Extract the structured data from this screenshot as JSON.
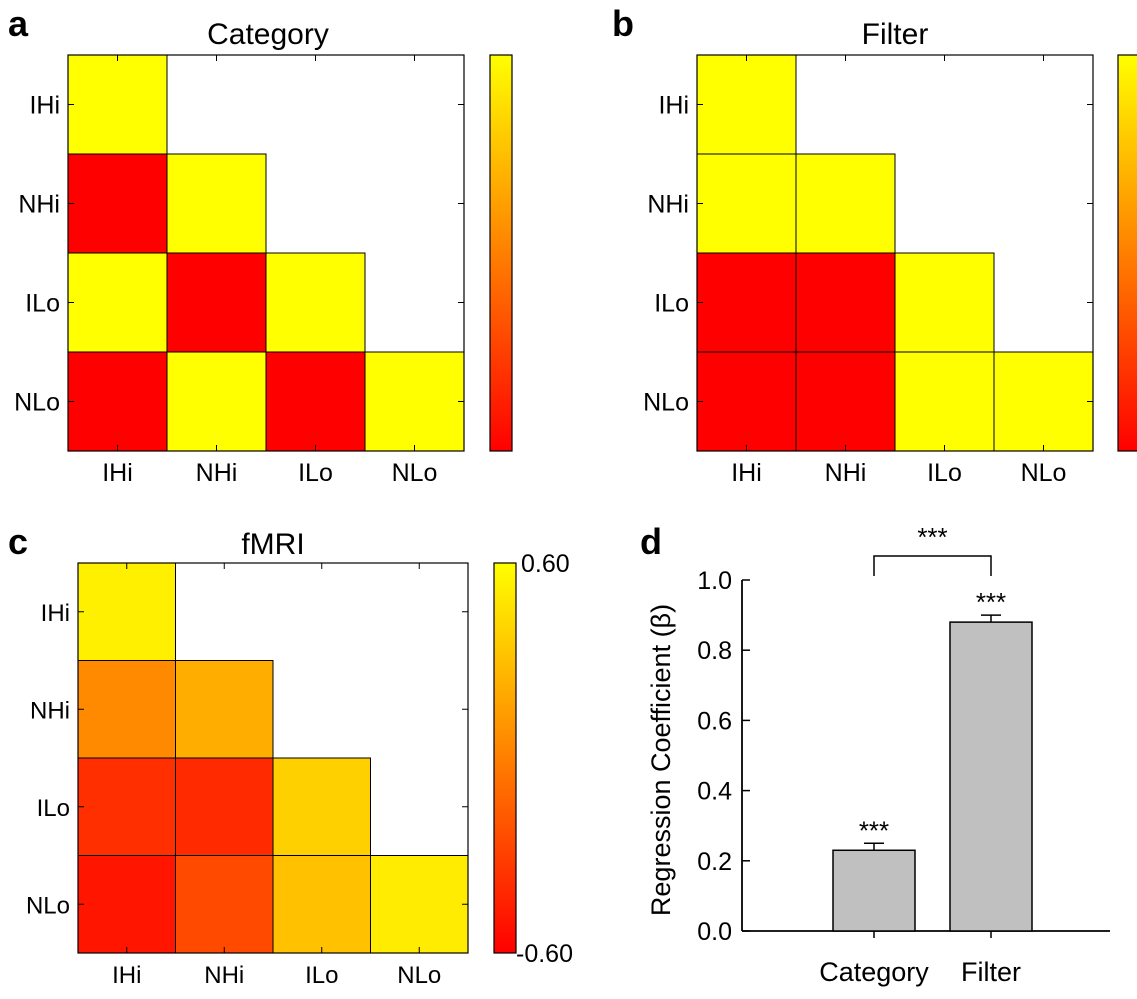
{
  "labels": [
    "IHi",
    "NHi",
    "ILo",
    "NLo"
  ],
  "colormap": {
    "low": "#ff0000",
    "high": "#ffff00"
  },
  "bar_color": "#c0c0c0",
  "chart_data": [
    {
      "type": "heatmap",
      "panel": "a",
      "title": "Category",
      "rows": [
        "IHi",
        "NHi",
        "ILo",
        "NLo"
      ],
      "cols": [
        "IHi",
        "NHi",
        "ILo",
        "NLo"
      ],
      "clim": [
        -1,
        1
      ],
      "values": [
        [
          1
        ],
        [
          -1,
          1
        ],
        [
          1,
          -1,
          1
        ],
        [
          -1,
          1,
          -1,
          1
        ]
      ]
    },
    {
      "type": "heatmap",
      "panel": "b",
      "title": "Filter",
      "rows": [
        "IHi",
        "NHi",
        "ILo",
        "NLo"
      ],
      "cols": [
        "IHi",
        "NHi",
        "ILo",
        "NLo"
      ],
      "clim": [
        -1,
        1
      ],
      "values": [
        [
          1
        ],
        [
          1,
          1
        ],
        [
          -1,
          -1,
          1
        ],
        [
          -1,
          -1,
          1,
          1
        ]
      ]
    },
    {
      "type": "heatmap",
      "panel": "c",
      "title": "fMRI",
      "rows": [
        "IHi",
        "NHi",
        "ILo",
        "NLo"
      ],
      "cols": [
        "IHi",
        "NHi",
        "ILo",
        "NLo"
      ],
      "clim": [
        -0.6,
        0.6
      ],
      "colorbar_labels": [
        "0.60",
        "-0.60"
      ],
      "values": [
        [
          0.53
        ],
        [
          0.05,
          0.22
        ],
        [
          -0.38,
          -0.4,
          0.38
        ],
        [
          -0.5,
          -0.25,
          0.31,
          0.51
        ]
      ]
    },
    {
      "type": "bar",
      "panel": "d",
      "categories": [
        "Category",
        "Filter"
      ],
      "values": [
        0.23,
        0.88
      ],
      "errors": [
        0.02,
        0.02
      ],
      "ylabel": "Regression Coefficient (β)",
      "ylim": [
        0,
        1.0
      ],
      "yticks": [
        "0.0",
        "0.2",
        "0.4",
        "0.6",
        "0.8",
        "1.0"
      ],
      "bar_annotations": [
        "***",
        "***"
      ],
      "bracket_annotation": "***"
    }
  ]
}
